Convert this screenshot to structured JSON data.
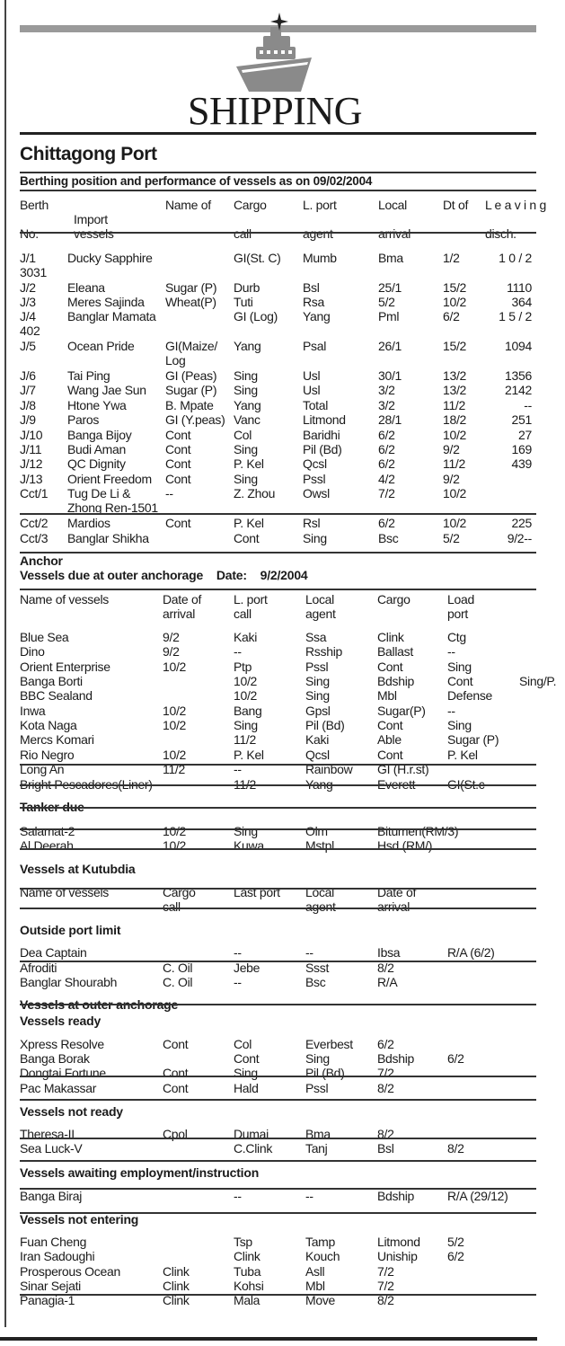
{
  "masthead": "SHIPPING",
  "port_title": "Chittagong Port",
  "icons": {
    "logo": "ship-with-star-icon"
  },
  "colors": {
    "text": "#1a1a1a",
    "bar": "#9a9a9a"
  },
  "berthing": {
    "title": "Berthing position and performance of vessels as on 09/02/2004",
    "header": [
      [
        "Berth",
        "",
        "Name of",
        "Cargo",
        "L. port",
        "Local",
        "Dt of",
        "L e a v i n g"
      ],
      [
        "",
        "Import",
        "",
        "",
        "",
        "",
        "",
        ""
      ],
      [
        "No.",
        "vessels",
        "",
        "call",
        "agent",
        "arrival",
        "",
        "disch."
      ]
    ],
    "rows": [
      [
        "J/1",
        "Ducky Sapphire",
        "",
        "GI(St. C)",
        "Mumb",
        "Bma",
        "1/2",
        "1 0 / 2"
      ],
      [
        "3031",
        "",
        "",
        "",
        "",
        "",
        "",
        ""
      ],
      [
        "J/2",
        "Eleana",
        "Sugar (P)",
        "Durb",
        "Bsl",
        "25/1",
        "15/2",
        "1110"
      ],
      [
        "J/3",
        "Meres Sajinda",
        "Wheat(P)",
        "Tuti",
        "Rsa",
        "5/2",
        "10/2",
        "364"
      ],
      [
        "J/4",
        "Banglar Mamata",
        "",
        "GI (Log)",
        "Yang",
        "Pml",
        "6/2",
        "1 5 / 2"
      ],
      [
        "402",
        "",
        "",
        "",
        "",
        "",
        "",
        ""
      ],
      [
        "J/5",
        "Ocean Pride",
        "GI(Maize/",
        "Yang",
        "Psal",
        "26/1",
        "15/2",
        "1094"
      ],
      [
        "",
        "",
        "Log",
        "",
        "",
        "",
        "",
        ""
      ],
      [
        "J/6",
        "Tai Ping",
        "GI (Peas)",
        "Sing",
        "Usl",
        "30/1",
        "13/2",
        "1356"
      ],
      [
        "J/7",
        "Wang Jae Sun",
        "Sugar (P)",
        "Sing",
        "Usl",
        "3/2",
        "13/2",
        "2142"
      ],
      [
        "J/8",
        "Htone Ywa",
        "B. Mpate",
        "Yang",
        "Total",
        "3/2",
        "11/2",
        "--"
      ],
      [
        "J/9",
        "Paros",
        "GI (Y.peas)",
        "Vanc",
        "Litmond",
        "28/1",
        "18/2",
        "251"
      ],
      [
        "J/10",
        "Banga Bijoy",
        "Cont",
        "Col",
        "Baridhi",
        "6/2",
        "10/2",
        "27"
      ],
      [
        "J/11",
        "Budi Aman",
        "Cont",
        "Sing",
        "Pil (Bd)",
        "6/2",
        "9/2",
        "169"
      ],
      [
        "J/12",
        "QC Dignity",
        "Cont",
        "P. Kel",
        "Qcsl",
        "6/2",
        "11/2",
        "439"
      ],
      [
        "J/13",
        "Orient Freedom",
        "Cont",
        "Sing",
        "Pssl",
        "4/2",
        "9/2",
        ""
      ],
      [
        "Cct/1",
        "Tug De Li &",
        "--",
        "Z. Zhou",
        "Owsl",
        "7/2",
        "10/2",
        ""
      ],
      [
        "",
        "Zhong Ren-1501",
        "",
        "",
        "",
        "",
        "",
        ""
      ],
      [
        "Cct/2",
        "Mardios",
        "Cont",
        "P. Kel",
        "Rsl",
        "6/2",
        "10/2",
        "225"
      ],
      [
        "Cct/3",
        "Banglar Shikha",
        "",
        "Cont",
        "Sing",
        "Bsc",
        "5/2",
        "9/2--"
      ]
    ]
  },
  "anchor": {
    "title": "Anchor",
    "subtitle": "Vessels due at outer anchorage    Date:    9/2/2004",
    "header": [
      [
        "Name of vessels",
        "Date of",
        "L. port",
        "Local",
        "Cargo",
        "Load",
        ""
      ],
      [
        "",
        "arrival",
        "call",
        "agent",
        "",
        "port",
        ""
      ]
    ],
    "rows": [
      [
        "Blue Sea",
        "9/2",
        "Kaki",
        "Ssa",
        "Clink",
        "Ctg",
        ""
      ],
      [
        "Dino",
        "9/2",
        "--",
        "Rsship",
        "Ballast",
        "--",
        ""
      ],
      [
        "Orient Enterprise",
        "10/2",
        "Ptp",
        "Pssl",
        "Cont",
        "Sing",
        ""
      ],
      [
        "Banga Borti",
        "",
        "10/2",
        "Sing",
        "Bdship",
        "Cont",
        "Sing/P."
      ],
      [
        "BBC Sealand",
        "",
        "10/2",
        "Sing",
        "Mbl",
        "Defense",
        ""
      ],
      [
        "Inwa",
        "10/2",
        "Bang",
        "Gpsl",
        "Sugar(P)",
        "--",
        ""
      ],
      [
        "Kota Naga",
        "10/2",
        "Sing",
        "Pil (Bd)",
        "Cont",
        "Sing",
        ""
      ],
      [
        "Mercs Komari",
        "",
        "11/2",
        "Kaki",
        "Able",
        "Sugar (P)",
        ""
      ],
      [
        "Rio Negro",
        "10/2",
        "P. Kel",
        "Qcsl",
        "Cont",
        "P. Kel",
        ""
      ],
      [
        "Long An",
        "11/2",
        "--",
        "Rainbow",
        "GI (H.r.st)",
        "",
        ""
      ],
      [
        "Bright Pescadores(Liner)",
        "",
        "11/2",
        "Yang",
        "Everett",
        "GI(St.c",
        "--"
      ]
    ]
  },
  "tanker": {
    "title": "Tanker due",
    "rows": [
      [
        "Salamat-2",
        "10/2",
        "Sing",
        "Olm",
        "Bitumen(RM/3)"
      ],
      [
        "Al Deerah",
        "10/2",
        "Kuwa",
        "Mstpl",
        "Hsd (RM/)"
      ]
    ]
  },
  "kutubdia": {
    "title": "Vessels at Kutubdia",
    "header": [
      [
        "Name of vessels",
        "Cargo",
        "Last port",
        "Local",
        "Date of"
      ],
      [
        "",
        "call",
        "",
        "agent",
        "arrival"
      ]
    ]
  },
  "outside": {
    "title": "Outside port limit",
    "rows": [
      [
        "Dea Captain",
        "",
        "--",
        "--",
        "Ibsa",
        "R/A (6/2)"
      ],
      [
        "Afroditi",
        "C. Oil",
        "Jebe",
        "Ssst",
        "8/2",
        ""
      ],
      [
        "Banglar Shourabh",
        "C. Oil",
        "--",
        "Bsc",
        "R/A",
        ""
      ]
    ]
  },
  "ready": {
    "title": "Vessels at outer anchorage",
    "subtitle": "Vessels ready",
    "rows": [
      [
        "Xpress Resolve",
        "Cont",
        "Col",
        "Everbest",
        "6/2",
        ""
      ],
      [
        "Banga Borak",
        "",
        "Cont",
        "Sing",
        "Bdship",
        "6/2"
      ],
      [
        "Dongtai Fortune",
        "Cont",
        "Sing",
        "Pil (Bd)",
        "7/2",
        ""
      ],
      [
        "Pac Makassar",
        "Cont",
        "Hald",
        "Pssl",
        "8/2",
        ""
      ]
    ]
  },
  "not_ready": {
    "title": "Vessels not ready",
    "rows": [
      [
        "Theresa-II",
        "Cpol",
        "Dumai",
        "Bma",
        "8/2",
        ""
      ],
      [
        "Sea Luck-V",
        "",
        "C.Clink",
        "Tanj",
        "Bsl",
        "8/2"
      ]
    ]
  },
  "awaiting": {
    "title": "Vessels awaiting employment/instruction",
    "rows": [
      [
        "Banga Biraj",
        "",
        "--",
        "--",
        "Bdship",
        "R/A (29/12)"
      ]
    ]
  },
  "not_entering": {
    "title": "Vessels not entering",
    "rows": [
      [
        "Fuan Cheng",
        "",
        "Tsp",
        "Tamp",
        "Litmond",
        "5/2"
      ],
      [
        "Iran Sadoughi",
        "",
        "Clink",
        "Kouch",
        "Uniship",
        "6/2"
      ],
      [
        "Prosperous Ocean",
        "Clink",
        "Tuba",
        "Asll",
        "7/2",
        ""
      ],
      [
        "Sinar Sejati",
        "Clink",
        "Kohsi",
        "Mbl",
        "7/2",
        ""
      ],
      [
        "Panagia-1",
        "Clink",
        "Mala",
        "Move",
        "8/2",
        ""
      ]
    ]
  }
}
